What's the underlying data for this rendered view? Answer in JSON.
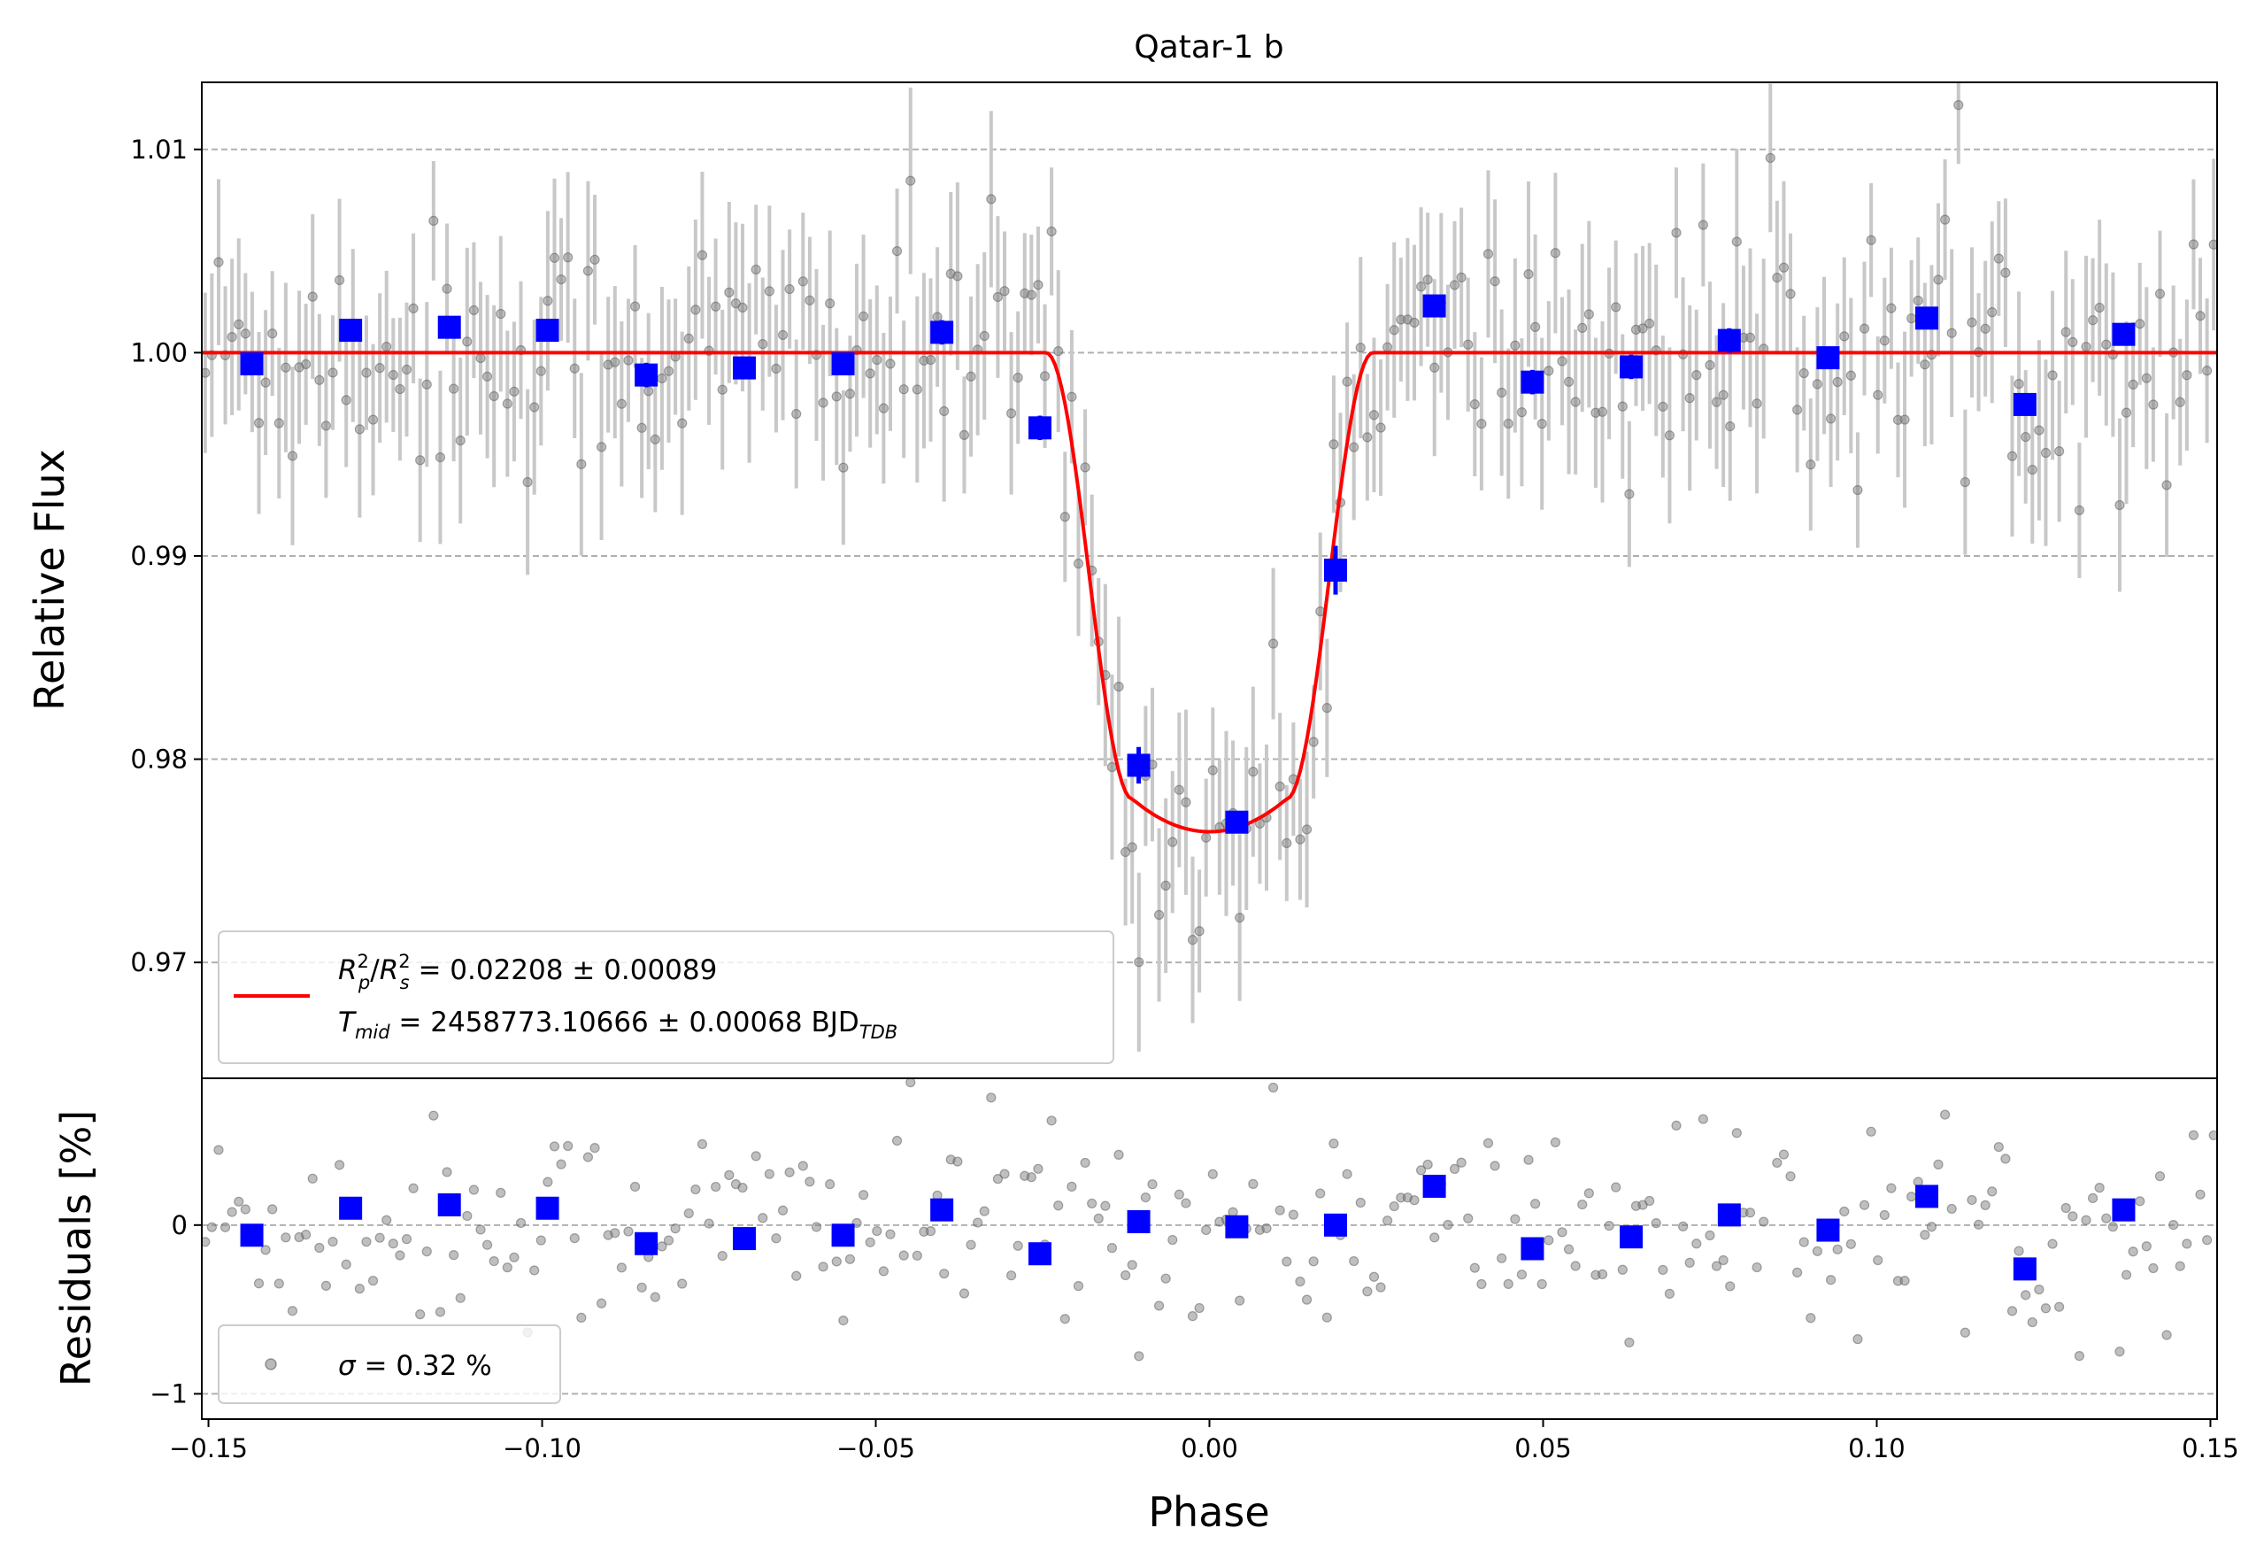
{
  "chart_data": [
    {
      "type": "scatter",
      "panel": "main",
      "title": "Qatar-1 b",
      "xlabel": "Phase",
      "ylabel": "Relative Flux",
      "xlim": [
        -0.151,
        0.151
      ],
      "ylim": [
        0.9643,
        1.0133
      ],
      "xticks": [
        -0.15,
        -0.1,
        -0.05,
        0.0,
        0.05,
        0.1,
        0.15
      ],
      "xtick_labels": [
        "−0.15",
        "−0.10",
        "−0.05",
        "0.00",
        "0.05",
        "0.10",
        "0.15"
      ],
      "yticks": [
        0.97,
        0.98,
        0.99,
        1.0,
        1.01
      ],
      "ytick_labels": [
        "0.97",
        "0.98",
        "0.99",
        "1.00",
        "1.01"
      ],
      "grid": "horizontal dashed",
      "legend_placement": "lower-left",
      "legend": {
        "line1": {
          "r": "R",
          "p": "p",
          "two": "2",
          "s": "s",
          "rest": " = 0.02208 ± 0.00089"
        },
        "line2": {
          "t": "T",
          "mid": "mid",
          "rest": " = 2458773.10666 ± 0.00068 BJD",
          "tdb": "TDB"
        }
      },
      "model": {
        "name": "transit model",
        "color": "#ff0000",
        "baseline": 1.0,
        "depth": 0.02357,
        "t_mid_phase": 0.0,
        "ingress_start": -0.0245,
        "full_start": -0.0115,
        "full_end": 0.0115,
        "egress_end": 0.0245
      },
      "binned": {
        "name": "binned data",
        "color": "#0000ff",
        "x": [
          -0.1435,
          -0.1287,
          -0.1139,
          -0.0992,
          -0.0844,
          -0.0697,
          -0.0549,
          -0.0401,
          -0.0254,
          -0.0106,
          0.0041,
          0.0189,
          0.0337,
          0.0484,
          0.0632,
          0.0779,
          0.0927,
          0.1075,
          0.1222,
          0.137
        ],
        "y": [
          0.99945,
          1.0011,
          1.00125,
          1.0011,
          0.9989,
          0.99925,
          0.99945,
          1.001,
          0.9963,
          0.9797,
          0.9769,
          0.9893,
          1.0023,
          0.99855,
          0.9993,
          1.0006,
          0.99975,
          1.0017,
          0.99745,
          1.0009
        ],
        "yerr": [
          0.0004,
          0.0004,
          0.0004,
          0.0004,
          0.0006,
          0.0004,
          0.0004,
          0.0006,
          0.0006,
          0.0009,
          0.0005,
          0.0012,
          0.0004,
          0.0006,
          0.0006,
          0.0006,
          0.0004,
          0.0005,
          0.0004,
          0.0004
        ]
      },
      "unbinned": {
        "name": "raw data",
        "color": "#808080",
        "n_points": 300,
        "typical_error": 0.0037,
        "scatter_sigma": 0.0032
      }
    },
    {
      "type": "scatter",
      "panel": "residuals",
      "xlabel": "Phase",
      "ylabel": "Residuals [%]",
      "xlim": [
        -0.151,
        0.151
      ],
      "ylim": [
        -1.15,
        0.87
      ],
      "yticks": [
        -1,
        0
      ],
      "ytick_labels": [
        "−1",
        "0"
      ],
      "grid": "horizontal dashed",
      "legend_placement": "lower-left",
      "legend": {
        "sigma": "σ",
        "rest": " = 0.32 %"
      },
      "binned": {
        "color": "#0000ff",
        "x": [
          -0.1435,
          -0.1287,
          -0.1139,
          -0.0992,
          -0.0844,
          -0.0697,
          -0.0549,
          -0.0401,
          -0.0254,
          -0.0106,
          0.0041,
          0.0189,
          0.0337,
          0.0484,
          0.0632,
          0.0779,
          0.0927,
          0.1075,
          0.1222,
          0.137
        ],
        "y": [
          -0.06,
          0.1,
          0.12,
          0.1,
          -0.11,
          -0.08,
          -0.06,
          0.09,
          -0.17,
          0.02,
          -0.01,
          0.0,
          0.23,
          -0.14,
          -0.07,
          0.06,
          -0.03,
          0.17,
          -0.26,
          0.09
        ]
      }
    }
  ]
}
